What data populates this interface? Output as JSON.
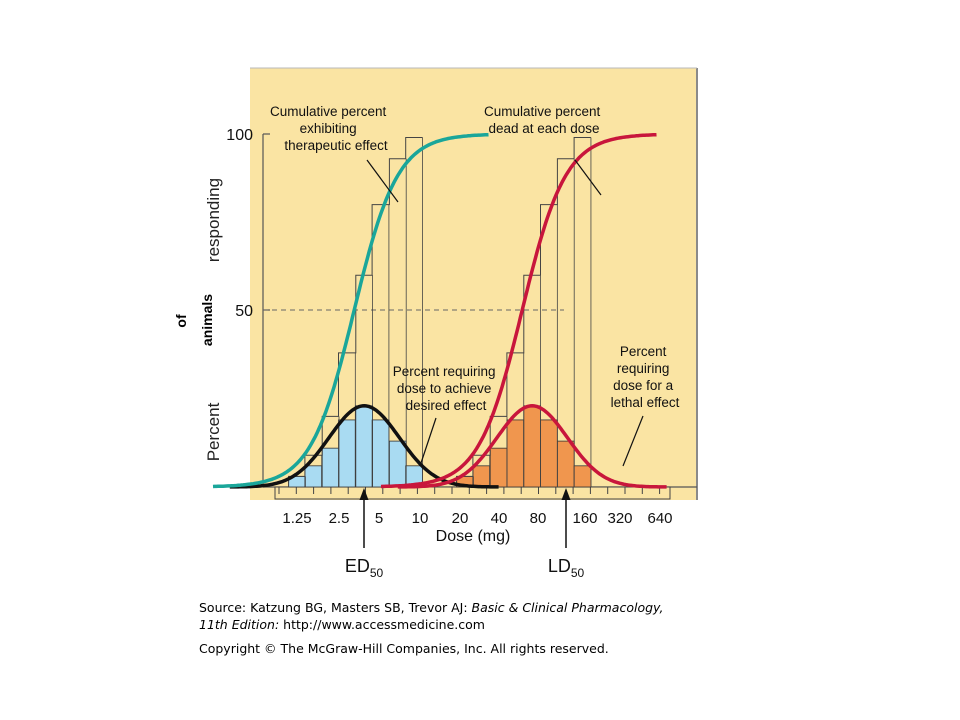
{
  "chart_data": {
    "type": "bar",
    "xlabel": "Dose (mg)",
    "ylabel_parts": [
      "Percent",
      "responding"
    ],
    "ylabel_overlay": [
      "of",
      "animals"
    ],
    "y_ticks": [
      "100",
      "50"
    ],
    "ylim": [
      0,
      100
    ],
    "x_ticks": [
      "1.25",
      "2.5",
      "5",
      "10",
      "20",
      "40",
      "80",
      "160",
      "320",
      "640"
    ],
    "x_scale": "log",
    "reference_line": 50,
    "markers": {
      "ed50": {
        "prefix": "ED",
        "sub": "50",
        "dose": 5
      },
      "ld50": {
        "prefix": "LD",
        "sub": "50",
        "dose": 160
      }
    },
    "series": [
      {
        "name": "Percent requiring dose to achieve desired effect",
        "color": "#a9dbf2",
        "curve_color": "#111111",
        "type": "histogram",
        "x": [
          1.25,
          1.75,
          2.5,
          3.5,
          5,
          7,
          10,
          14
        ],
        "values": [
          3,
          6,
          11,
          19,
          23,
          19,
          13,
          6
        ]
      },
      {
        "name": "Cumulative percent exhibiting therapeutic effect",
        "color": "#1aa69a",
        "type": "cumulative",
        "x": [
          1.25,
          1.75,
          2.5,
          3.5,
          5,
          7,
          10,
          14
        ],
        "values": [
          3,
          9,
          20,
          38,
          60,
          80,
          93,
          99
        ]
      },
      {
        "name": "Percent requiring dose for a lethal effect",
        "color": "#f0964e",
        "curve_color": "#c8163c",
        "type": "histogram",
        "x": [
          40,
          56,
          80,
          113,
          160,
          226,
          320,
          452
        ],
        "values": [
          3,
          6,
          11,
          19,
          23,
          19,
          13,
          6
        ]
      },
      {
        "name": "Cumulative percent dead at each dose",
        "color": "#c8163c",
        "type": "cumulative",
        "x": [
          40,
          56,
          80,
          113,
          160,
          226,
          320,
          452
        ],
        "values": [
          3,
          9,
          20,
          38,
          60,
          80,
          93,
          99
        ]
      }
    ],
    "annotations": [
      {
        "lines": [
          "Cumulative percent",
          "exhibiting",
          "therapeutic effect"
        ]
      },
      {
        "lines": [
          "Cumulative percent",
          "dead at each dose"
        ]
      },
      {
        "lines": [
          "Percent requiring",
          "dose to achieve",
          "desired effect"
        ]
      },
      {
        "lines": [
          "Percent",
          "requiring",
          "dose for a",
          "lethal effect"
        ]
      }
    ]
  },
  "caption": {
    "source_prefix": "Source: Katzung BG, Masters SB, Trevor AJ: ",
    "source_title": "Basic & Clinical Pharmacology,",
    "edition_italic": "11th Edition:",
    "edition_url": " http://www.accessmedicine.com",
    "copyright": "Copyright © The McGraw-Hill Companies, Inc. All rights reserved."
  }
}
